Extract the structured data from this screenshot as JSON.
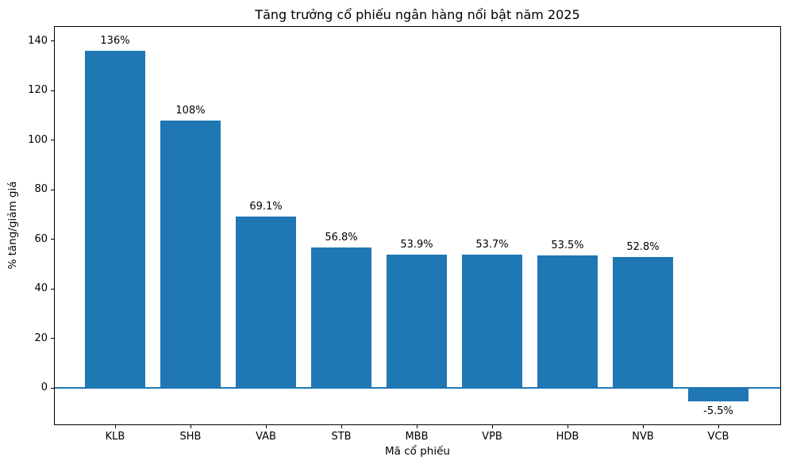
{
  "figure": {
    "background_color": "#ffffff"
  },
  "chart_data": {
    "type": "bar",
    "title": "Tăng trưởng cổ phiếu ngân hàng nổi bật năm 2025",
    "xlabel": "Mã cổ phiếu",
    "ylabel": "% tăng/giảm giá",
    "categories": [
      "KLB",
      "SHB",
      "VAB",
      "STB",
      "MBB",
      "VPB",
      "HDB",
      "NVB",
      "VCB"
    ],
    "values": [
      136,
      108,
      69.1,
      56.8,
      53.9,
      53.7,
      53.5,
      52.8,
      -5.5
    ],
    "value_labels": [
      "136%",
      "108%",
      "69.1%",
      "56.8%",
      "53.9%",
      "53.7%",
      "53.5%",
      "52.8%",
      "-5.5%"
    ],
    "yticks": [
      0,
      20,
      40,
      60,
      80,
      100,
      120,
      140
    ],
    "ylim": [
      -15,
      146
    ],
    "bar_color": "#1f77b4",
    "zero_line_color": "#1f77b4",
    "axis_color": "#000000",
    "grid": false,
    "legend": null
  }
}
